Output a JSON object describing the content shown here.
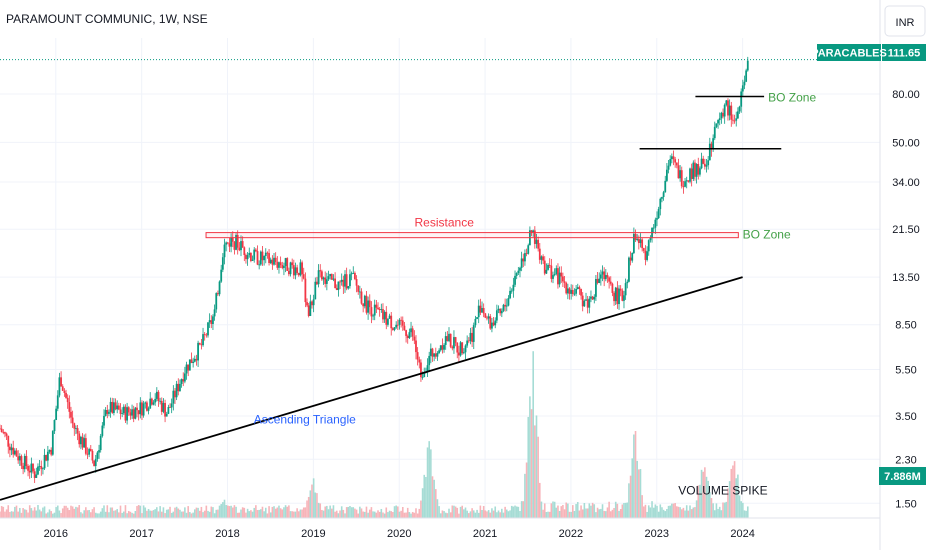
{
  "header": {
    "title": "PARAMOUNT COMMUNIC, 1W, NSE",
    "currency_button": "INR"
  },
  "price_badge": {
    "symbol": "PARACABLES",
    "price": "111.65",
    "color": "#089981"
  },
  "volume_badge": {
    "value": "7.886M",
    "color": "#089981"
  },
  "chart_data": {
    "type": "candlestick",
    "title": "PARAMOUNT COMMUNIC, 1W, NSE",
    "y_scale": "log",
    "ylim": [
      1.3,
      125
    ],
    "y_ticks": [
      {
        "value": 80,
        "label": "80.00"
      },
      {
        "value": 50,
        "label": "50.00"
      },
      {
        "value": 34,
        "label": "34.00"
      },
      {
        "value": 21.5,
        "label": "21.50"
      },
      {
        "value": 13.5,
        "label": "13.50"
      },
      {
        "value": 8.5,
        "label": "8.50"
      },
      {
        "value": 5.5,
        "label": "5.50"
      },
      {
        "value": 3.5,
        "label": "3.50"
      },
      {
        "value": 2.3,
        "label": "2.30"
      },
      {
        "value": 1.5,
        "label": "1.50"
      }
    ],
    "x_ticks": [
      {
        "value": 2016.0,
        "label": "2016"
      },
      {
        "value": 2017.0,
        "label": "2017"
      },
      {
        "value": 2018.0,
        "label": "2018"
      },
      {
        "value": 2019.0,
        "label": "2019"
      },
      {
        "value": 2020.0,
        "label": "2020"
      },
      {
        "value": 2021.0,
        "label": "2021"
      },
      {
        "value": 2022.0,
        "label": "2022"
      },
      {
        "value": 2023.0,
        "label": "2023"
      },
      {
        "value": 2024.0,
        "label": "2024"
      }
    ],
    "xlim": [
      2015.35,
      2025.6
    ],
    "last_price": 111.65,
    "price_path": [
      [
        2015.35,
        3.1
      ],
      [
        2015.55,
        2.4
      ],
      [
        2015.75,
        2.0
      ],
      [
        2015.95,
        2.6
      ],
      [
        2016.05,
        5.2
      ],
      [
        2016.2,
        3.2
      ],
      [
        2016.45,
        2.2
      ],
      [
        2016.6,
        3.8
      ],
      [
        2016.8,
        3.6
      ],
      [
        2017.0,
        3.8
      ],
      [
        2017.15,
        4.3
      ],
      [
        2017.3,
        3.6
      ],
      [
        2017.5,
        5.5
      ],
      [
        2017.7,
        7.0
      ],
      [
        2017.85,
        9.5
      ],
      [
        2017.95,
        18.0
      ],
      [
        2018.05,
        19.5
      ],
      [
        2018.3,
        16.5
      ],
      [
        2018.6,
        15.5
      ],
      [
        2018.85,
        14.5
      ],
      [
        2018.95,
        9.5
      ],
      [
        2019.05,
        13.5
      ],
      [
        2019.3,
        12.5
      ],
      [
        2019.45,
        13.5
      ],
      [
        2019.6,
        10.5
      ],
      [
        2019.8,
        9.2
      ],
      [
        2020.0,
        8.3
      ],
      [
        2020.15,
        7.8
      ],
      [
        2020.25,
        5.3
      ],
      [
        2020.4,
        6.6
      ],
      [
        2020.55,
        7.5
      ],
      [
        2020.7,
        6.7
      ],
      [
        2020.85,
        7.8
      ],
      [
        2020.95,
        10.5
      ],
      [
        2021.05,
        8.5
      ],
      [
        2021.2,
        9.5
      ],
      [
        2021.35,
        13.5
      ],
      [
        2021.55,
        21.0
      ],
      [
        2021.7,
        15.0
      ],
      [
        2021.85,
        13.5
      ],
      [
        2022.0,
        12.0
      ],
      [
        2022.2,
        10.5
      ],
      [
        2022.35,
        14.0
      ],
      [
        2022.5,
        11.5
      ],
      [
        2022.6,
        11.0
      ],
      [
        2022.75,
        21.0
      ],
      [
        2022.85,
        16.5
      ],
      [
        2022.95,
        21.5
      ],
      [
        2023.05,
        30.0
      ],
      [
        2023.15,
        43.0
      ],
      [
        2023.3,
        35.0
      ],
      [
        2023.45,
        39.0
      ],
      [
        2023.55,
        40.0
      ],
      [
        2023.7,
        60.0
      ],
      [
        2023.8,
        73.0
      ],
      [
        2023.9,
        60.0
      ],
      [
        2024.0,
        80.0
      ],
      [
        2024.06,
        111.65
      ]
    ],
    "annotations": [
      {
        "text": "Resistance",
        "kind": "zone",
        "x1": 2017.75,
        "x2": 2023.95,
        "y_low": 19.8,
        "y_high": 20.8,
        "color": "#f23645"
      },
      {
        "text": "BO Zone",
        "kind": "label",
        "x": 2024.0,
        "y": 20.4,
        "color": "#43a047"
      },
      {
        "text": "BO Zone",
        "kind": "hline",
        "x1": 2023.45,
        "x2": 2024.25,
        "y": 78.0,
        "color": "#000000"
      },
      {
        "text": "",
        "kind": "hline",
        "x1": 2022.8,
        "x2": 2024.45,
        "y": 47.0,
        "color": "#000000"
      },
      {
        "text": "Ascending Triangle",
        "kind": "trendline",
        "x1": 2015.35,
        "y1": 1.55,
        "x2": 2024.0,
        "y2": 13.5,
        "color": "#000000",
        "label_x": 2018.9,
        "label_y": 3.25,
        "label_color": "#2962ff"
      },
      {
        "text": "VOLUME SPIKE",
        "kind": "label",
        "x": 2023.25,
        "y": 1.7,
        "color": "#131722"
      }
    ],
    "volume": {
      "label": "VOLUME SPIKE",
      "last_value": "7.886M",
      "spikes": [
        [
          2017.95,
          0.18
        ],
        [
          2019.0,
          0.33
        ],
        [
          2020.35,
          0.65
        ],
        [
          2021.55,
          1.0
        ],
        [
          2022.75,
          0.53
        ],
        [
          2023.55,
          0.44
        ],
        [
          2023.9,
          0.42
        ]
      ]
    },
    "colors": {
      "up": "#089981",
      "down": "#f23645",
      "grid": "#f0f3fa",
      "volume_up": "#a6dcd5",
      "volume_down": "#f7b4b9"
    }
  }
}
